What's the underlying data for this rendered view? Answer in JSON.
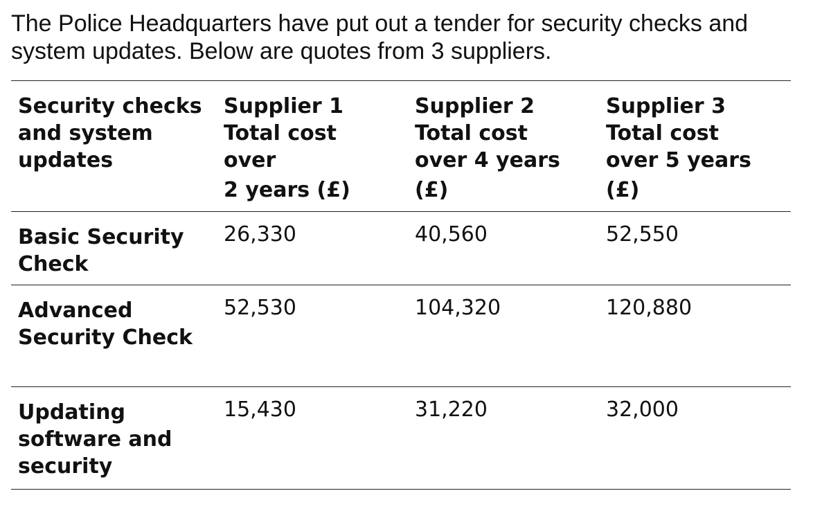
{
  "intro": {
    "line1": "The Police Headquarters have put out a tender for security checks and",
    "line2": "system updates. Below are quotes from 3 suppliers."
  },
  "table": {
    "headers": [
      {
        "lines": [
          "Security checks",
          "and system",
          "updates"
        ]
      },
      {
        "lines": [
          "Supplier 1",
          "Total cost",
          "over",
          "2 years (£)"
        ]
      },
      {
        "lines": [
          "Supplier 2",
          "Total cost",
          "over 4 years",
          "(£)"
        ]
      },
      {
        "lines": [
          "Supplier 3",
          "Total cost",
          "over 5 years",
          "(£)"
        ]
      }
    ],
    "rows": [
      {
        "label_lines": [
          "Basic Security",
          "Check"
        ],
        "values": [
          "26,330",
          "40,560",
          "52,550"
        ]
      },
      {
        "label_lines": [
          "Advanced",
          "Security Check"
        ],
        "values": [
          "52,530",
          "104,320",
          "120,880"
        ]
      },
      {
        "label_lines": [
          "Updating",
          "software and",
          "security"
        ],
        "values": [
          "15,430",
          "31,220",
          "32,000"
        ]
      }
    ]
  }
}
